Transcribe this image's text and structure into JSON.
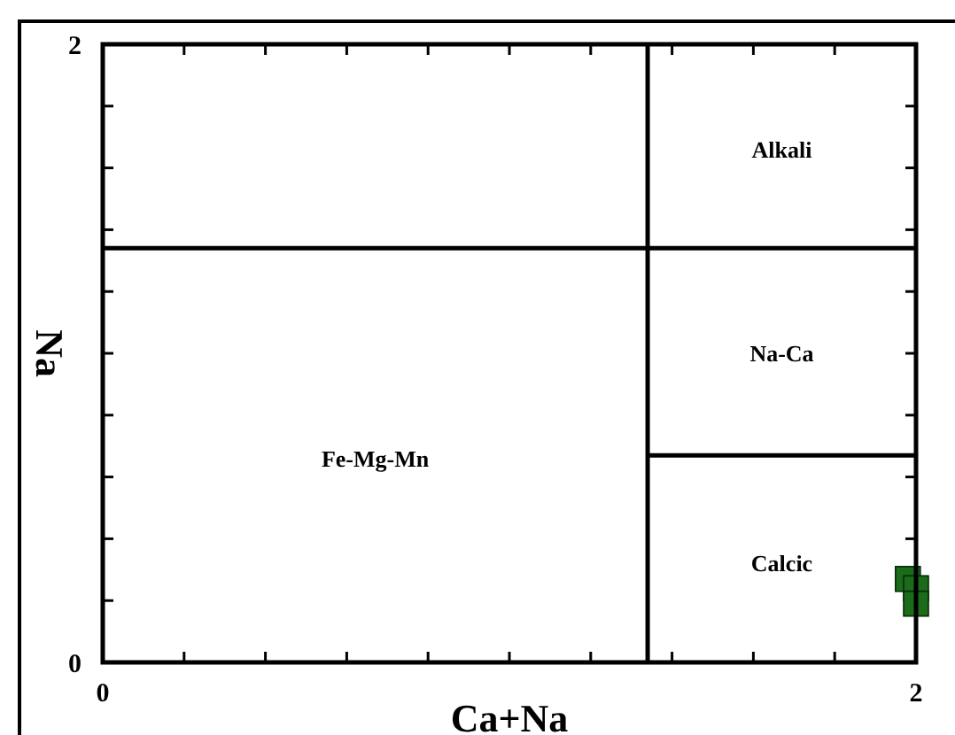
{
  "chart_data": {
    "type": "scatter",
    "xlabel": "Ca+Na",
    "ylabel": "Na",
    "xlim": [
      0,
      2
    ],
    "ylim": [
      0,
      2
    ],
    "xticks": [
      0,
      {
        "value": 0.2,
        "label": null
      },
      {
        "value": 0.4,
        "label": null
      },
      {
        "value": 0.6,
        "label": null
      },
      {
        "value": 0.8,
        "label": null
      },
      {
        "value": 1,
        "label": null
      },
      {
        "value": 1.2,
        "label": null
      },
      {
        "value": 1.4,
        "label": null
      },
      {
        "value": 1.6,
        "label": null
      },
      {
        "value": 1.8,
        "label": null
      },
      2
    ],
    "yticks": [
      0,
      {
        "value": 0.2,
        "label": null
      },
      {
        "value": 0.4,
        "label": null
      },
      {
        "value": 0.6,
        "label": null
      },
      {
        "value": 0.8,
        "label": null
      },
      {
        "value": 1,
        "label": null
      },
      {
        "value": 1.2,
        "label": null
      },
      {
        "value": 1.4,
        "label": null
      },
      {
        "value": 1.6,
        "label": null
      },
      {
        "value": 1.8,
        "label": null
      },
      2
    ],
    "grid": false,
    "marker": "square",
    "series": [
      {
        "type": "line",
        "color": "#000000",
        "x": [
          1.34,
          1.34
        ],
        "values": [
          0,
          2
        ],
        "marker": "none"
      },
      {
        "type": "line",
        "color": "#000000",
        "x": [
          0,
          2
        ],
        "values": [
          1.34,
          1.34
        ],
        "marker": "none"
      },
      {
        "type": "line",
        "color": "#000000",
        "x": [
          1.34,
          2
        ],
        "values": [
          0.67,
          0.67
        ],
        "marker": "none"
      },
      {
        "color": "#1a6b1a",
        "x": [
          1.98,
          2.0,
          2.0
        ],
        "values": [
          0.27,
          0.24,
          0.19
        ]
      }
    ],
    "annotations": [
      "Alkali",
      "Na-Ca",
      "Fe-Mg-Mn",
      "Calcic"
    ]
  }
}
